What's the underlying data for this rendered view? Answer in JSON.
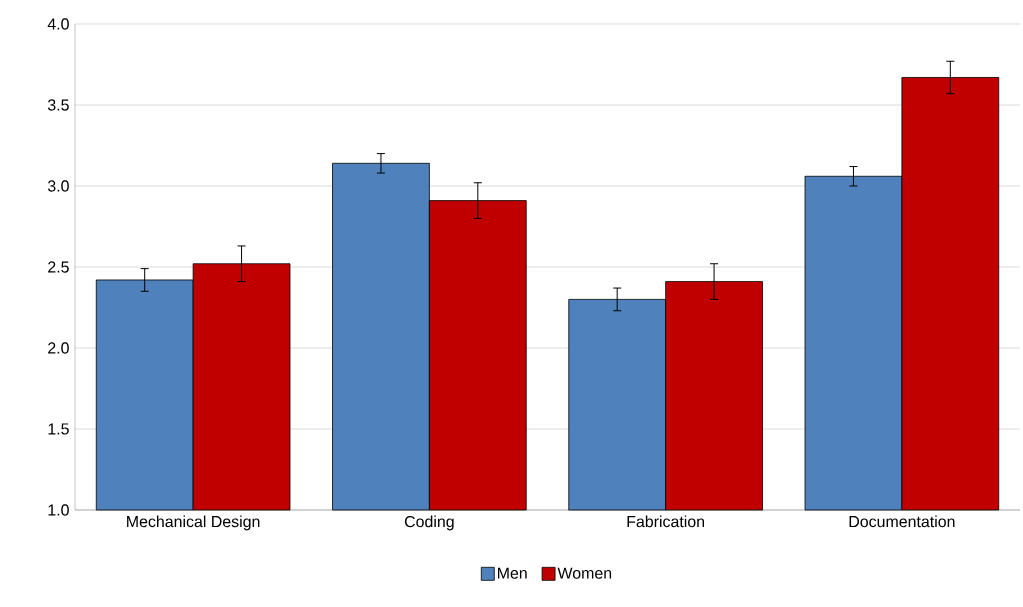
{
  "chart_data": {
    "type": "bar",
    "categories": [
      "Mechanical Design",
      "Coding",
      "Fabrication",
      "Documentation"
    ],
    "series": [
      {
        "name": "Men",
        "color": "#4f81bd",
        "values": [
          2.42,
          3.14,
          2.3,
          3.06
        ],
        "errors": [
          0.07,
          0.06,
          0.07,
          0.06
        ]
      },
      {
        "name": "Women",
        "color": "#c00000",
        "values": [
          2.52,
          2.91,
          2.41,
          3.67
        ],
        "errors": [
          0.11,
          0.11,
          0.11,
          0.1
        ]
      }
    ],
    "ylim": [
      1.0,
      4.0
    ],
    "yticks": [
      {
        "value": 1.0,
        "label": "1.0"
      },
      {
        "value": 1.5,
        "label": "1.5"
      },
      {
        "value": 2.0,
        "label": "2.0"
      },
      {
        "value": 2.5,
        "label": "2.5"
      },
      {
        "value": 3.0,
        "label": "3.0"
      },
      {
        "value": 3.5,
        "label": "3.5"
      },
      {
        "value": 4.0,
        "label": "4.0"
      }
    ],
    "grid": "y",
    "legend": "bottom"
  }
}
